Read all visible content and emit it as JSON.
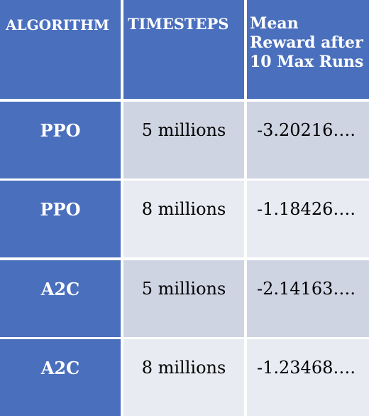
{
  "headers": {
    "algorithm": "ALGORITHM",
    "timesteps": "TIMESTEPS",
    "mean_reward": "Mean Reward after 10 Max Runs"
  },
  "rows": [
    {
      "algorithm": "PPO",
      "timesteps": "5 millions",
      "mean_reward": "-3.20216…."
    },
    {
      "algorithm": "PPO",
      "timesteps": "8 millions",
      "mean_reward": "-1.18426…."
    },
    {
      "algorithm": "A2C",
      "timesteps": "5 millions",
      "mean_reward": "-2.14163…."
    },
    {
      "algorithm": "A2C",
      "timesteps": "8 millions",
      "mean_reward": "-1.23468…."
    }
  ],
  "colors": {
    "header_blue": "#4a6fbd",
    "row_dark": "#cfd4e3",
    "row_light": "#e9ebf2"
  }
}
